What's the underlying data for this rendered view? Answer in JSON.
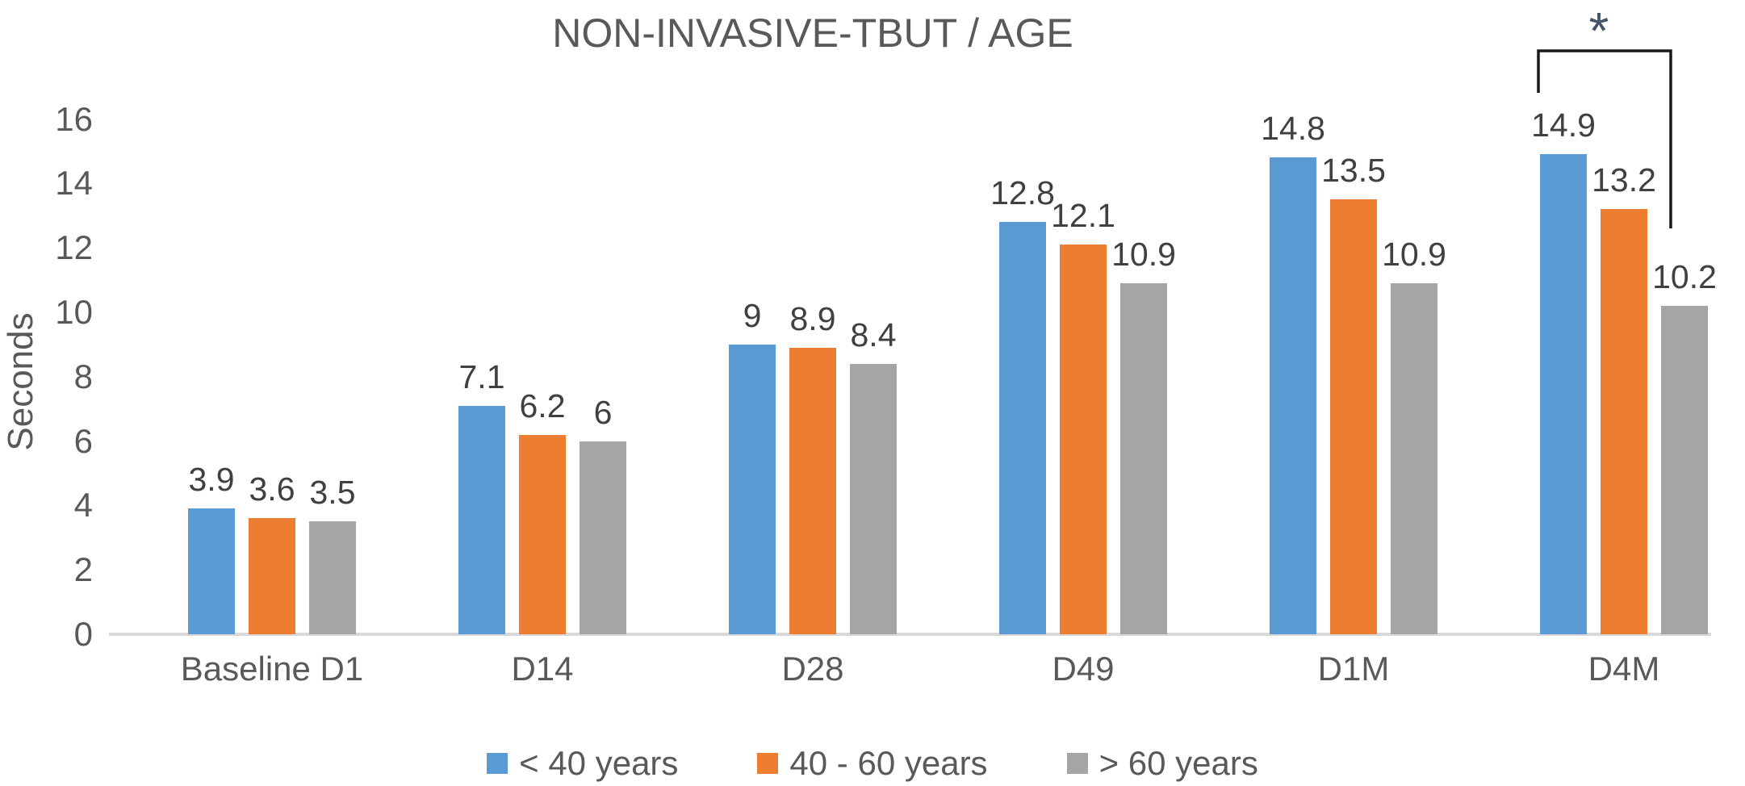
{
  "chart_data": {
    "type": "bar",
    "title": "NON-INVASIVE-TBUT / AGE",
    "xlabel": "",
    "ylabel": "Seconds",
    "categories": [
      "Baseline D1",
      "D14",
      "D28",
      "D49",
      "D1M",
      "D4M"
    ],
    "series": [
      {
        "name": "< 40 years",
        "color": "#5B9BD5",
        "values": [
          3.9,
          7.1,
          9,
          12.8,
          14.8,
          14.9
        ]
      },
      {
        "name": "40 - 60 years",
        "color": "#ED7D31",
        "values": [
          3.6,
          6.2,
          8.9,
          12.1,
          13.5,
          13.2
        ]
      },
      {
        "name": "> 60 years",
        "color": "#A5A5A5",
        "values": [
          3.5,
          6,
          8.4,
          10.9,
          10.9,
          10.2
        ]
      }
    ],
    "ylim": [
      0,
      16
    ],
    "yticks": [
      0,
      2,
      4,
      6,
      8,
      10,
      12,
      14,
      16
    ],
    "grid": false,
    "data_labels": true,
    "legend_position": "bottom",
    "annotation": {
      "symbol": "*",
      "category": "D4M",
      "from_series": "< 40 years",
      "to_series": "> 60 years",
      "symbol_color": "#44546A",
      "line_color": "#1a1a1a"
    },
    "style": {
      "text_color": "#595959",
      "data_label_color": "#404040",
      "axis_line_color": "#D9D9D9"
    }
  }
}
